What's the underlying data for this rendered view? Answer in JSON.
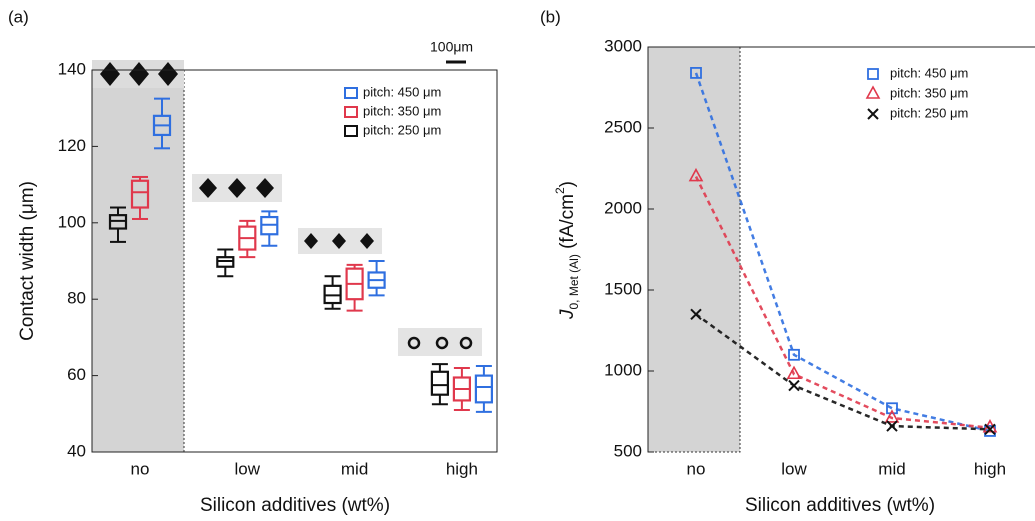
{
  "chart_data": [
    {
      "type": "box",
      "panel_label": "(a)",
      "x_label": "Silicon additives (wt%)",
      "y_label": "Contact width (μm)",
      "scale_bar": "100μm",
      "categories": [
        "no",
        "low",
        "mid",
        "high"
      ],
      "ylim": [
        40,
        140
      ],
      "yticks": [
        40,
        60,
        80,
        100,
        120,
        140
      ],
      "series": [
        {
          "name": "pitch: 450 μm",
          "color": "#2f6fe0",
          "values": [
            [
              119.5,
              123,
              125.5,
              128,
              132.5
            ],
            [
              94,
              97,
              99.5,
              101.5,
              103
            ],
            [
              81,
              83,
              85,
              87,
              90
            ],
            [
              50.5,
              53,
              57,
              60,
              62.5
            ]
          ]
        },
        {
          "name": "pitch: 350 μm",
          "color": "#e0384c",
          "values": [
            [
              101,
              104,
              108,
              111,
              112
            ],
            [
              91,
              93,
              96,
              99,
              100.5
            ],
            [
              77,
              80,
              84,
              88,
              89
            ],
            [
              51,
              53.5,
              56.5,
              59.5,
              62
            ]
          ]
        },
        {
          "name": "pitch: 250 μm",
          "color": "#111111",
          "values": [
            [
              95,
              98.5,
              100.5,
              102,
              104
            ],
            [
              86,
              88.5,
              90,
              91,
              93
            ],
            [
              77.5,
              79,
              81,
              83.5,
              86
            ],
            [
              52.5,
              55,
              57.5,
              61,
              63
            ]
          ]
        }
      ]
    },
    {
      "type": "line",
      "panel_label": "(b)",
      "x_label": "Silicon additives (wt%)",
      "y_label_parts": [
        "J",
        "0, Met (Al)",
        " (fA/cm",
        "2",
        ")"
      ],
      "categories": [
        "no",
        "low",
        "mid",
        "high"
      ],
      "ylim": [
        500,
        3000
      ],
      "yticks": [
        500,
        1000,
        1500,
        2000,
        2500,
        3000
      ],
      "series": [
        {
          "name": "pitch: 450 μm",
          "color": "#2f6fe0",
          "marker": "square",
          "values": [
            2840,
            1100,
            770,
            630
          ]
        },
        {
          "name": "pitch: 350 μm",
          "color": "#e0384c",
          "marker": "triangle",
          "values": [
            2200,
            980,
            710,
            650
          ]
        },
        {
          "name": "pitch: 250 μm",
          "color": "#111111",
          "marker": "x",
          "values": [
            1350,
            910,
            660,
            640
          ]
        }
      ]
    }
  ]
}
